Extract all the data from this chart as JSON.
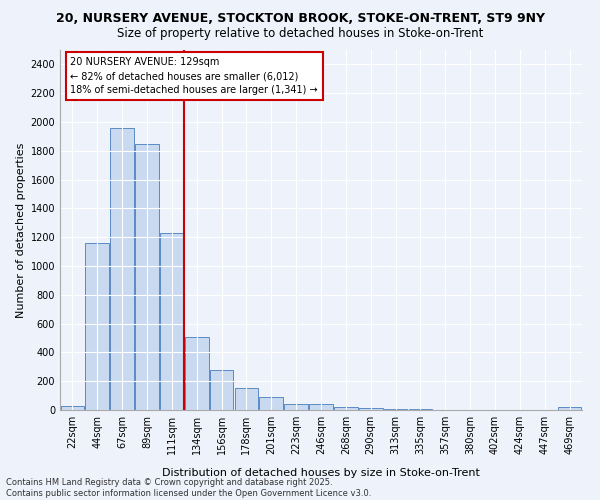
{
  "title_line1": "20, NURSERY AVENUE, STOCKTON BROOK, STOKE-ON-TRENT, ST9 9NY",
  "title_line2": "Size of property relative to detached houses in Stoke-on-Trent",
  "xlabel": "Distribution of detached houses by size in Stoke-on-Trent",
  "ylabel": "Number of detached properties",
  "categories": [
    "22sqm",
    "44sqm",
    "67sqm",
    "89sqm",
    "111sqm",
    "134sqm",
    "156sqm",
    "178sqm",
    "201sqm",
    "223sqm",
    "246sqm",
    "268sqm",
    "290sqm",
    "313sqm",
    "335sqm",
    "357sqm",
    "380sqm",
    "402sqm",
    "424sqm",
    "447sqm",
    "469sqm"
  ],
  "values": [
    30,
    1160,
    1960,
    1850,
    1230,
    510,
    275,
    150,
    90,
    45,
    45,
    20,
    15,
    5,
    5,
    3,
    2,
    2,
    1,
    1,
    18
  ],
  "bar_color": "#c9d9f0",
  "bar_edge_color": "#5a8ac6",
  "vline_color": "#cc0000",
  "annotation_title": "20 NURSERY AVENUE: 129sqm",
  "annotation_line2": "← 82% of detached houses are smaller (6,012)",
  "annotation_line3": "18% of semi-detached houses are larger (1,341) →",
  "annotation_box_color": "#cc0000",
  "ylim": [
    0,
    2500
  ],
  "yticks": [
    0,
    200,
    400,
    600,
    800,
    1000,
    1200,
    1400,
    1600,
    1800,
    2000,
    2200,
    2400
  ],
  "footer_line1": "Contains HM Land Registry data © Crown copyright and database right 2025.",
  "footer_line2": "Contains public sector information licensed under the Open Government Licence v3.0.",
  "bg_color": "#edf2fb",
  "plot_bg_color": "#edf2fb",
  "title_fontsize": 9,
  "subtitle_fontsize": 8.5,
  "axis_label_fontsize": 8,
  "tick_fontsize": 7,
  "annotation_fontsize": 7,
  "footer_fontsize": 6
}
